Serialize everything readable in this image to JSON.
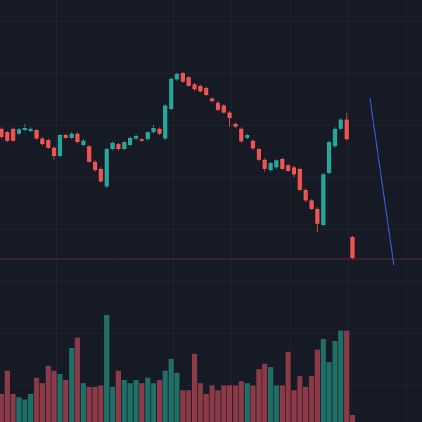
{
  "chart_data": {
    "type": "candlestick",
    "ylim": [
      0,
      600
    ],
    "y2lim": [
      0,
      600
    ],
    "up_color": "#26a69a",
    "down_color": "#ef5350",
    "volume_up_color": "#1f6f66",
    "volume_down_color": "#8c3a47",
    "open": [
      417,
      412,
      417,
      410,
      415,
      414,
      415,
      403,
      401,
      390,
      378,
      408,
      404,
      410,
      394,
      392,
      370,
      360,
      335,
      388,
      395,
      388,
      394,
      403,
      402,
      402,
      412,
      417,
      403,
      445,
      487,
      496,
      490,
      480,
      478,
      475,
      460,
      454,
      450,
      440,
      424,
      417,
      404,
      400,
      388,
      373,
      358,
      362,
      374,
      365,
      362,
      360,
      330,
      315,
      303,
      280,
      354,
      392,
      417,
      430,
      263
    ],
    "close": [
      405,
      400,
      400,
      416,
      418,
      417,
      403,
      395,
      390,
      378,
      408,
      404,
      410,
      398,
      400,
      370,
      358,
      342,
      388,
      397,
      388,
      398,
      404,
      407,
      400,
      412,
      418,
      410,
      450,
      488,
      495,
      484,
      478,
      473,
      470,
      465,
      456,
      444,
      440,
      432,
      420,
      399,
      408,
      389,
      373,
      360,
      368,
      372,
      360,
      357,
      352,
      330,
      315,
      303,
      282,
      352,
      398,
      417,
      430,
      402,
      233
    ],
    "high": [
      419,
      414,
      419,
      418,
      424,
      419,
      417,
      405,
      403,
      392,
      410,
      410,
      412,
      412,
      402,
      394,
      372,
      362,
      390,
      399,
      397,
      400,
      406,
      409,
      404,
      414,
      422,
      419,
      452,
      490,
      497,
      498,
      492,
      482,
      480,
      477,
      462,
      456,
      452,
      442,
      426,
      419,
      410,
      402,
      390,
      375,
      370,
      374,
      376,
      367,
      364,
      362,
      332,
      317,
      305,
      354,
      400,
      419,
      432,
      440,
      265
    ],
    "low": [
      403,
      398,
      398,
      408,
      413,
      412,
      401,
      393,
      388,
      373,
      376,
      402,
      402,
      396,
      392,
      368,
      356,
      340,
      333,
      386,
      386,
      386,
      392,
      401,
      398,
      400,
      410,
      408,
      401,
      443,
      485,
      482,
      476,
      471,
      468,
      463,
      454,
      442,
      438,
      420,
      418,
      397,
      402,
      387,
      371,
      356,
      356,
      360,
      358,
      355,
      348,
      328,
      313,
      301,
      270,
      278,
      352,
      390,
      415,
      400,
      231
    ],
    "volume": {
      "axis": "y2",
      "values": [
        40,
        73,
        40,
        35,
        32,
        40,
        63,
        55,
        80,
        73,
        68,
        60,
        105,
        120,
        55,
        50,
        50,
        52,
        152,
        50,
        73,
        60,
        55,
        60,
        55,
        63,
        55,
        60,
        73,
        90,
        70,
        45,
        45,
        97,
        55,
        40,
        52,
        45,
        52,
        52,
        52,
        58,
        55,
        52,
        75,
        83,
        78,
        52,
        52,
        100,
        45,
        65,
        50,
        65,
        103,
        118,
        85,
        115,
        130,
        130,
        10
      ]
    }
  }
}
